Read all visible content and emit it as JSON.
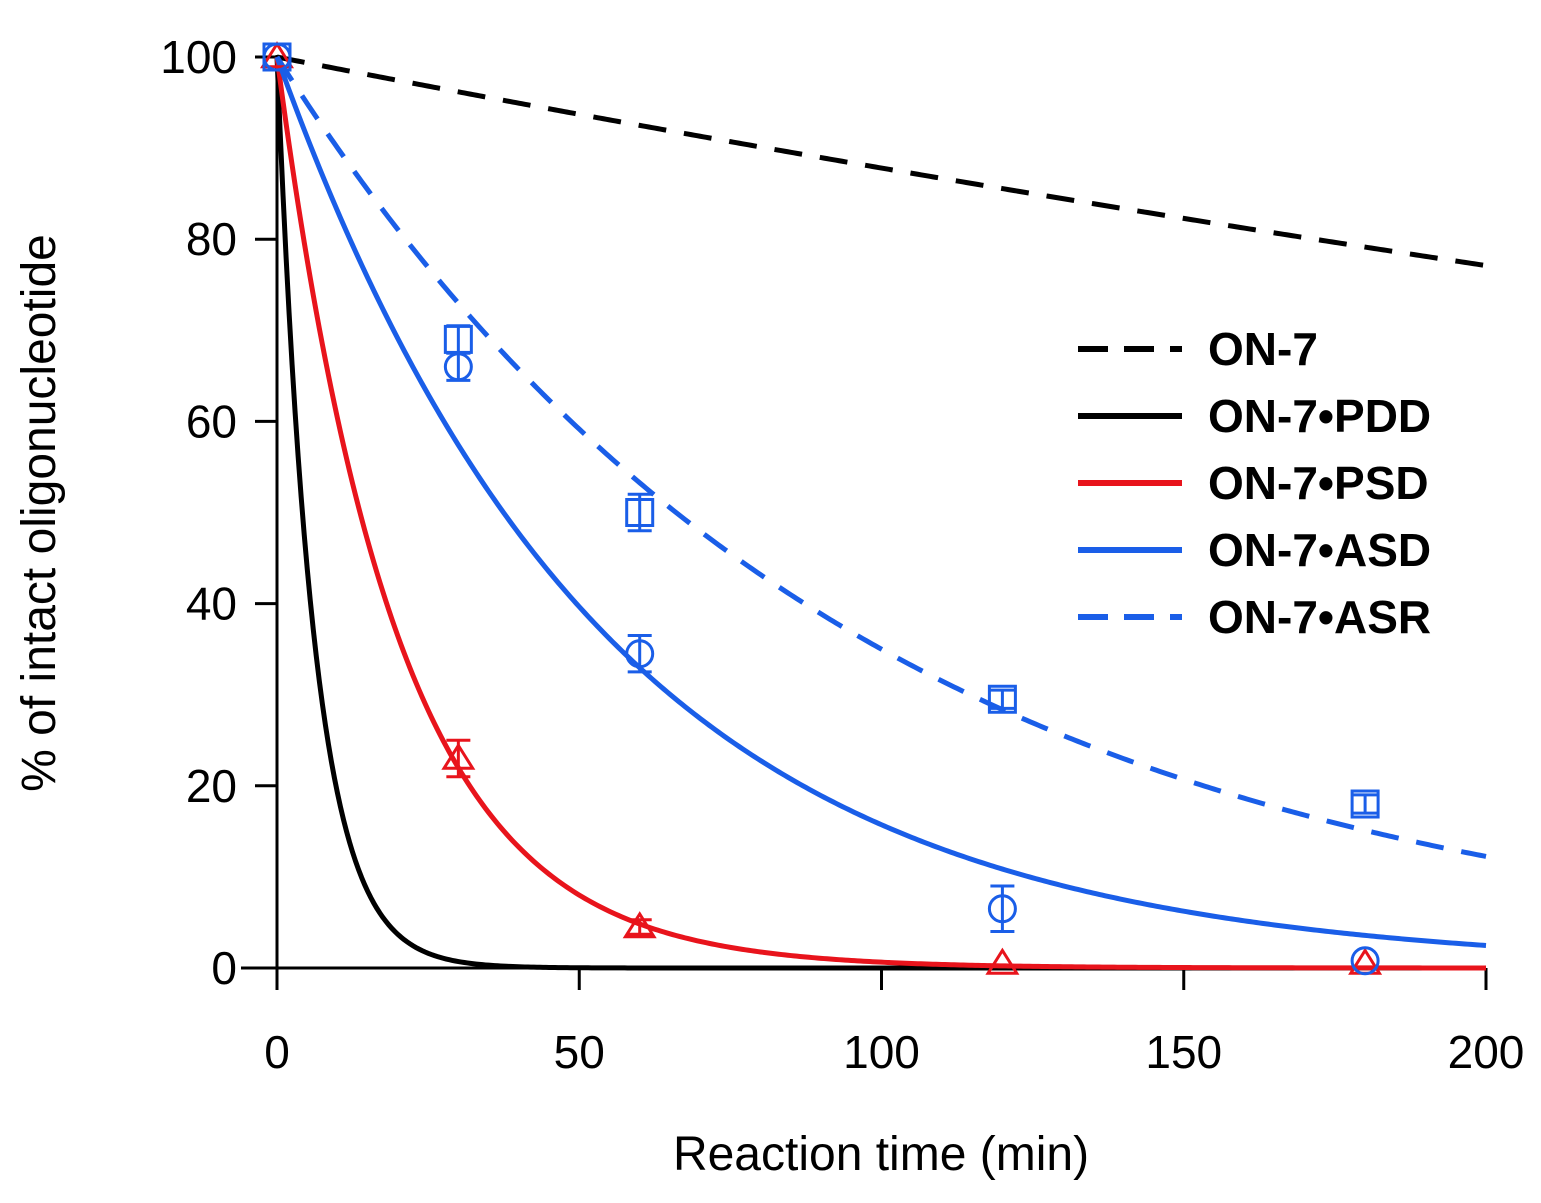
{
  "chart_data": {
    "type": "line",
    "title": "",
    "xlabel": "Reaction time (min)",
    "ylabel": "% of intact oligonucleotide",
    "xlim": [
      0,
      200
    ],
    "ylim": [
      0,
      100
    ],
    "xticks": [
      0,
      50,
      100,
      150,
      200
    ],
    "yticks": [
      0,
      20,
      40,
      60,
      80,
      100
    ],
    "xtick_labels": [
      "0",
      "50",
      "100",
      "150",
      "200"
    ],
    "ytick_labels": [
      "0",
      "20",
      "40",
      "60",
      "80",
      "100"
    ],
    "grid": false,
    "legend_position": "center-right",
    "series": [
      {
        "name": "ON-7",
        "color": "#000000",
        "dash": "dashed",
        "fit_rate_per_min": 0.0013,
        "points": []
      },
      {
        "name": "ON-7•PDD",
        "color": "#000000",
        "dash": "solid",
        "fit_rate_per_min": 0.165,
        "points": []
      },
      {
        "name": "ON-7•PSD",
        "color": "#e8141c",
        "dash": "solid",
        "fit_rate_per_min": 0.0505,
        "marker": "triangle",
        "points": [
          {
            "x": 0,
            "y": 100,
            "err": 0
          },
          {
            "x": 30,
            "y": 23,
            "err": 2
          },
          {
            "x": 60,
            "y": 4.5,
            "err": 0.8
          },
          {
            "x": 120,
            "y": 0.5,
            "err": 0
          },
          {
            "x": 180,
            "y": 0.5,
            "err": 0
          }
        ]
      },
      {
        "name": "ON-7•ASD",
        "color": "#1a5ee8",
        "dash": "solid",
        "fit_rate_per_min": 0.0185,
        "marker": "circle",
        "points": [
          {
            "x": 0,
            "y": 100,
            "err": 0
          },
          {
            "x": 30,
            "y": 66,
            "err": 1.5
          },
          {
            "x": 60,
            "y": 34.5,
            "err": 2
          },
          {
            "x": 120,
            "y": 6.5,
            "err": 2.5
          },
          {
            "x": 180,
            "y": 0.8,
            "err": 0
          }
        ]
      },
      {
        "name": "ON-7•ASR",
        "color": "#1a5ee8",
        "dash": "dashed",
        "fit_rate_per_min": 0.0105,
        "marker": "square",
        "points": [
          {
            "x": 0,
            "y": 100,
            "err": 0
          },
          {
            "x": 30,
            "y": 69,
            "err": 1.5
          },
          {
            "x": 60,
            "y": 50,
            "err": 2
          },
          {
            "x": 120,
            "y": 29.5,
            "err": 1
          },
          {
            "x": 180,
            "y": 18,
            "err": 1
          }
        ]
      }
    ]
  }
}
